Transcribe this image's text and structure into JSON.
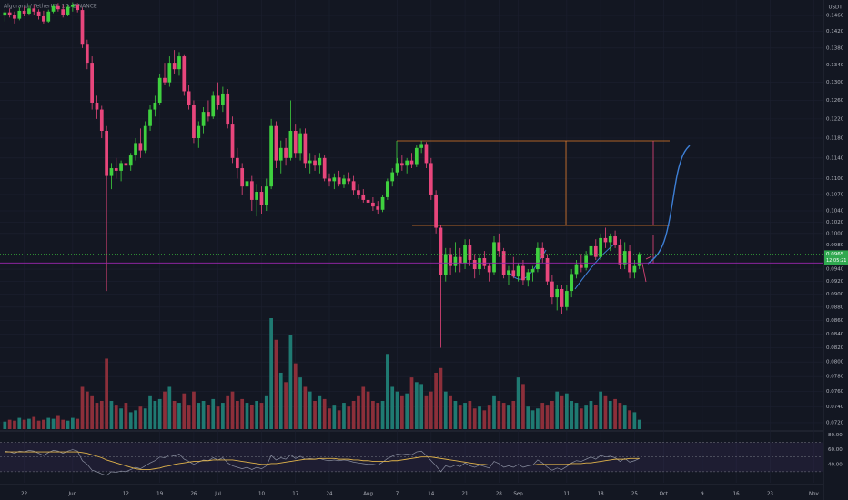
{
  "chart_data": {
    "type": "candlestick",
    "title": "Algorand / TetherUS, 1D, BINANCE",
    "currency": "USDT",
    "log_scale": true,
    "up_color": "#3fd13f",
    "down_color": "#e8467c",
    "volume_up_color": "#1f7a72",
    "volume_down_color": "#8c2f3a",
    "rsi_color": "#8a8fa0",
    "rsi_ma_color": "#e0b34a",
    "last_price": 0.0965,
    "countdown": "12:05:21",
    "horizontal_line": 0.095,
    "xlim": [
      -5,
      165
    ],
    "ylim": [
      0.0712,
      0.15
    ],
    "x": [
      -4,
      -3,
      -2,
      -1,
      0,
      1,
      2,
      3,
      4,
      5,
      6,
      7,
      8,
      9,
      10,
      11,
      12,
      13,
      14,
      15,
      16,
      17,
      18,
      19,
      20,
      21,
      22,
      23,
      24,
      25,
      26,
      27,
      28,
      29,
      30,
      31,
      32,
      33,
      34,
      35,
      36,
      37,
      38,
      39,
      40,
      41,
      42,
      43,
      44,
      45,
      46,
      47,
      48,
      49,
      50,
      51,
      52,
      53,
      54,
      55,
      56,
      57,
      58,
      59,
      60,
      61,
      62,
      63,
      64,
      65,
      66,
      67,
      68,
      69,
      70,
      71,
      72,
      73,
      74,
      75,
      76,
      77,
      78,
      79,
      80,
      81,
      82,
      83,
      84,
      85,
      86,
      87,
      88,
      89,
      90,
      91,
      92,
      93,
      94,
      95,
      96,
      97,
      98,
      99,
      100,
      101,
      102,
      103,
      104,
      105,
      106,
      107,
      108,
      109,
      110,
      111,
      112,
      113,
      114,
      115,
      116,
      117,
      118,
      119,
      120,
      121,
      122,
      123,
      124,
      125,
      126,
      127
    ],
    "ohlc": [
      [
        0.146,
        0.1475,
        0.1445,
        0.1468
      ],
      [
        0.1468,
        0.1478,
        0.1455,
        0.1462
      ],
      [
        0.1462,
        0.147,
        0.144,
        0.1452
      ],
      [
        0.1452,
        0.148,
        0.1448,
        0.1472
      ],
      [
        0.1472,
        0.1482,
        0.1458,
        0.1465
      ],
      [
        0.1465,
        0.1485,
        0.146,
        0.1478
      ],
      [
        0.1478,
        0.1488,
        0.1462,
        0.147
      ],
      [
        0.147,
        0.1476,
        0.145,
        0.1458
      ],
      [
        0.1458,
        0.1472,
        0.144,
        0.1445
      ],
      [
        0.1445,
        0.1475,
        0.1442,
        0.147
      ],
      [
        0.147,
        0.149,
        0.1466,
        0.1484
      ],
      [
        0.1484,
        0.1492,
        0.147,
        0.1476
      ],
      [
        0.1476,
        0.1486,
        0.1455,
        0.1462
      ],
      [
        0.1462,
        0.1488,
        0.1458,
        0.1482
      ],
      [
        0.1482,
        0.1494,
        0.147,
        0.1488
      ],
      [
        0.1488,
        0.1492,
        0.1468,
        0.1474
      ],
      [
        0.1474,
        0.148,
        0.138,
        0.139
      ],
      [
        0.139,
        0.14,
        0.133,
        0.1345
      ],
      [
        0.1345,
        0.136,
        0.124,
        0.1255
      ],
      [
        0.1255,
        0.127,
        0.122,
        0.124
      ],
      [
        0.124,
        0.1248,
        0.118,
        0.1195
      ],
      [
        0.1195,
        0.1205,
        0.0905,
        0.1105
      ],
      [
        0.1105,
        0.113,
        0.108,
        0.112
      ],
      [
        0.112,
        0.114,
        0.11,
        0.1115
      ],
      [
        0.1115,
        0.1135,
        0.1095,
        0.113
      ],
      [
        0.113,
        0.1145,
        0.111,
        0.1125
      ],
      [
        0.1125,
        0.115,
        0.1115,
        0.1145
      ],
      [
        0.1145,
        0.118,
        0.1135,
        0.117
      ],
      [
        0.117,
        0.12,
        0.114,
        0.1155
      ],
      [
        0.1155,
        0.1215,
        0.115,
        0.1205
      ],
      [
        0.1205,
        0.125,
        0.1195,
        0.124
      ],
      [
        0.124,
        0.127,
        0.1225,
        0.1255
      ],
      [
        0.1255,
        0.132,
        0.125,
        0.131
      ],
      [
        0.131,
        0.1345,
        0.1295,
        0.13
      ],
      [
        0.13,
        0.136,
        0.129,
        0.1345
      ],
      [
        0.1345,
        0.1375,
        0.132,
        0.133
      ],
      [
        0.133,
        0.137,
        0.1315,
        0.136
      ],
      [
        0.136,
        0.1365,
        0.127,
        0.128
      ],
      [
        0.128,
        0.1295,
        0.124,
        0.125
      ],
      [
        0.125,
        0.126,
        0.117,
        0.118
      ],
      [
        0.118,
        0.1215,
        0.116,
        0.1205
      ],
      [
        0.1205,
        0.1245,
        0.119,
        0.1235
      ],
      [
        0.1235,
        0.126,
        0.1215,
        0.1225
      ],
      [
        0.1225,
        0.128,
        0.122,
        0.127
      ],
      [
        0.127,
        0.13,
        0.124,
        0.125
      ],
      [
        0.125,
        0.129,
        0.1235,
        0.1275
      ],
      [
        0.1275,
        0.1285,
        0.12,
        0.121
      ],
      [
        0.121,
        0.1225,
        0.113,
        0.114
      ],
      [
        0.114,
        0.116,
        0.11,
        0.112
      ],
      [
        0.112,
        0.113,
        0.107,
        0.1085
      ],
      [
        0.1085,
        0.111,
        0.106,
        0.1095
      ],
      [
        0.1095,
        0.1105,
        0.104,
        0.106
      ],
      [
        0.106,
        0.109,
        0.103,
        0.1075
      ],
      [
        0.1075,
        0.1085,
        0.1035,
        0.105
      ],
      [
        0.105,
        0.11,
        0.104,
        0.1085
      ],
      [
        0.1085,
        0.122,
        0.108,
        0.1205
      ],
      [
        0.1205,
        0.1215,
        0.112,
        0.1135
      ],
      [
        0.1135,
        0.1175,
        0.111,
        0.116
      ],
      [
        0.116,
        0.118,
        0.1125,
        0.114
      ],
      [
        0.114,
        0.126,
        0.1135,
        0.1195
      ],
      [
        0.1195,
        0.121,
        0.114,
        0.115
      ],
      [
        0.115,
        0.12,
        0.1135,
        0.119
      ],
      [
        0.119,
        0.12,
        0.112,
        0.113
      ],
      [
        0.113,
        0.115,
        0.111,
        0.1135
      ],
      [
        0.1135,
        0.1145,
        0.1115,
        0.1125
      ],
      [
        0.1125,
        0.115,
        0.111,
        0.114
      ],
      [
        0.114,
        0.1145,
        0.1095,
        0.11
      ],
      [
        0.11,
        0.111,
        0.1085,
        0.1095
      ],
      [
        0.1095,
        0.111,
        0.108,
        0.1102
      ],
      [
        0.1102,
        0.1115,
        0.1085,
        0.109
      ],
      [
        0.109,
        0.1108,
        0.1082,
        0.11
      ],
      [
        0.11,
        0.1112,
        0.109,
        0.1095
      ],
      [
        0.1095,
        0.1105,
        0.107,
        0.1078
      ],
      [
        0.1078,
        0.109,
        0.1062,
        0.107
      ],
      [
        0.107,
        0.108,
        0.1055,
        0.106
      ],
      [
        0.106,
        0.1068,
        0.1045,
        0.1055
      ],
      [
        0.1055,
        0.1065,
        0.104,
        0.1048
      ],
      [
        0.1048,
        0.1058,
        0.1035,
        0.1042
      ],
      [
        0.1042,
        0.107,
        0.1038,
        0.1065
      ],
      [
        0.1065,
        0.11,
        0.106,
        0.1095
      ],
      [
        0.1095,
        0.112,
        0.1085,
        0.1112
      ],
      [
        0.1112,
        0.114,
        0.1105,
        0.113
      ],
      [
        0.113,
        0.1145,
        0.1115,
        0.1125
      ],
      [
        0.1125,
        0.114,
        0.111,
        0.1135
      ],
      [
        0.1135,
        0.115,
        0.112,
        0.1128
      ],
      [
        0.1128,
        0.1165,
        0.1122,
        0.116
      ],
      [
        0.116,
        0.1175,
        0.115,
        0.1168
      ],
      [
        0.1168,
        0.1172,
        0.112,
        0.113
      ],
      [
        0.113,
        0.114,
        0.106,
        0.107
      ],
      [
        0.107,
        0.1078,
        0.1,
        0.101
      ],
      [
        0.101,
        0.1015,
        0.082,
        0.093
      ],
      [
        0.093,
        0.0975,
        0.092,
        0.0965
      ],
      [
        0.0965,
        0.0975,
        0.093,
        0.0945
      ],
      [
        0.0945,
        0.0985,
        0.0935,
        0.096
      ],
      [
        0.096,
        0.0975,
        0.0935,
        0.095
      ],
      [
        0.095,
        0.099,
        0.094,
        0.098
      ],
      [
        0.098,
        0.099,
        0.0945,
        0.0955
      ],
      [
        0.0955,
        0.0965,
        0.0925,
        0.094
      ],
      [
        0.094,
        0.0965,
        0.093,
        0.0958
      ],
      [
        0.0958,
        0.097,
        0.094,
        0.0945
      ],
      [
        0.0945,
        0.095,
        0.092,
        0.0935
      ],
      [
        0.0935,
        0.0995,
        0.093,
        0.0985
      ],
      [
        0.0985,
        0.1,
        0.096,
        0.097
      ],
      [
        0.097,
        0.0975,
        0.0925,
        0.093
      ],
      [
        0.093,
        0.0945,
        0.0915,
        0.0938
      ],
      [
        0.0938,
        0.096,
        0.0925,
        0.0928
      ],
      [
        0.0928,
        0.095,
        0.092,
        0.0945
      ],
      [
        0.0945,
        0.0955,
        0.0915,
        0.0922
      ],
      [
        0.0922,
        0.094,
        0.0912,
        0.0935
      ],
      [
        0.0935,
        0.0945,
        0.092,
        0.094
      ],
      [
        0.094,
        0.0985,
        0.0935,
        0.0975
      ],
      [
        0.0975,
        0.0985,
        0.095,
        0.0958
      ],
      [
        0.0958,
        0.0965,
        0.0915,
        0.092
      ],
      [
        0.092,
        0.093,
        0.0885,
        0.0895
      ],
      [
        0.0895,
        0.0915,
        0.0875,
        0.0908
      ],
      [
        0.0908,
        0.0915,
        0.087,
        0.088
      ],
      [
        0.088,
        0.0915,
        0.0875,
        0.0905
      ],
      [
        0.0905,
        0.094,
        0.0895,
        0.0932
      ],
      [
        0.0932,
        0.0955,
        0.0925,
        0.0948
      ],
      [
        0.0948,
        0.0965,
        0.0935,
        0.0942
      ],
      [
        0.0942,
        0.097,
        0.0938,
        0.0962
      ],
      [
        0.0962,
        0.0985,
        0.0955,
        0.0978
      ],
      [
        0.0978,
        0.099,
        0.0955,
        0.096
      ],
      [
        0.096,
        0.1,
        0.0955,
        0.0992
      ],
      [
        0.0992,
        0.101,
        0.0975,
        0.0985
      ],
      [
        0.0985,
        0.1,
        0.097,
        0.0995
      ],
      [
        0.0995,
        0.1005,
        0.0975,
        0.098
      ],
      [
        0.098,
        0.099,
        0.094,
        0.0948
      ],
      [
        0.0948,
        0.0985,
        0.094,
        0.097
      ],
      [
        0.097,
        0.098,
        0.0925,
        0.0935
      ],
      [
        0.0935,
        0.0955,
        0.0925,
        0.0945
      ],
      [
        0.0945,
        0.0968,
        0.094,
        0.0965
      ]
    ],
    "volume": [
      8,
      10,
      9,
      12,
      10,
      11,
      13,
      9,
      10,
      12,
      11,
      14,
      10,
      9,
      12,
      11,
      45,
      40,
      35,
      28,
      30,
      75,
      30,
      25,
      22,
      28,
      18,
      20,
      24,
      22,
      35,
      30,
      32,
      40,
      45,
      30,
      28,
      38,
      25,
      40,
      28,
      30,
      26,
      32,
      24,
      28,
      35,
      40,
      30,
      32,
      28,
      26,
      30,
      28,
      35,
      118,
      95,
      60,
      50,
      100,
      70,
      55,
      45,
      40,
      30,
      35,
      32,
      22,
      25,
      20,
      28,
      24,
      30,
      35,
      45,
      40,
      30,
      28,
      30,
      80,
      45,
      40,
      35,
      38,
      55,
      50,
      48,
      35,
      40,
      60,
      65,
      40,
      35,
      30,
      25,
      28,
      30,
      22,
      24,
      20,
      25,
      35,
      30,
      28,
      25,
      30,
      55,
      48,
      24,
      20,
      22,
      28,
      25,
      30,
      40,
      35,
      38,
      30,
      28,
      22,
      25,
      30,
      26,
      40,
      35,
      30,
      32,
      28,
      25,
      20,
      18,
      10
    ],
    "rsi": [
      58,
      57,
      55,
      58,
      57,
      59,
      58,
      55,
      52,
      56,
      59,
      58,
      55,
      58,
      60,
      58,
      45,
      40,
      32,
      30,
      27,
      25,
      30,
      29,
      31,
      30,
      33,
      36,
      34,
      38,
      42,
      45,
      50,
      49,
      53,
      51,
      54,
      47,
      44,
      40,
      43,
      46,
      45,
      49,
      46,
      49,
      42,
      38,
      36,
      34,
      36,
      33,
      36,
      34,
      38,
      52,
      46,
      49,
      47,
      53,
      48,
      51,
      47,
      48,
      47,
      48,
      46,
      45,
      46,
      45,
      46,
      45,
      43,
      42,
      41,
      40,
      40,
      39,
      43,
      48,
      51,
      54,
      53,
      54,
      53,
      57,
      58,
      52,
      45,
      38,
      30,
      38,
      36,
      39,
      37,
      42,
      38,
      36,
      39,
      37,
      35,
      44,
      41,
      36,
      38,
      36,
      40,
      36,
      38,
      39,
      46,
      42,
      36,
      32,
      35,
      33,
      37,
      42,
      45,
      44,
      47,
      50,
      47,
      52,
      50,
      51,
      49,
      44,
      48,
      43,
      45,
      48
    ],
    "rsi_ma": [
      57,
      57,
      57,
      57,
      57,
      57,
      57,
      57,
      57,
      57,
      57,
      57,
      57,
      57,
      57,
      57,
      56,
      55,
      53,
      51,
      49,
      46,
      44,
      42,
      40,
      38,
      36,
      34,
      33,
      33,
      33,
      34,
      35,
      37,
      38,
      40,
      41,
      42,
      43,
      44,
      44,
      45,
      45,
      46,
      46,
      46,
      46,
      46,
      45,
      44,
      43,
      42,
      41,
      40,
      40,
      41,
      41,
      42,
      43,
      44,
      45,
      46,
      47,
      47,
      47,
      48,
      48,
      48,
      48,
      47,
      47,
      47,
      46,
      46,
      45,
      45,
      44,
      44,
      44,
      44,
      45,
      45,
      46,
      47,
      48,
      49,
      50,
      50,
      50,
      49,
      48,
      47,
      46,
      45,
      44,
      43,
      42,
      41,
      40,
      40,
      39,
      39,
      39,
      39,
      39,
      39,
      39,
      39,
      39,
      39,
      40,
      40,
      40,
      40,
      40,
      40,
      40,
      41,
      41,
      41,
      42,
      42,
      43,
      44,
      45,
      46,
      47,
      47,
      47,
      48,
      48,
      48
    ],
    "rsi_ylim": [
      15,
      83
    ],
    "rsi_levels": [
      70,
      50,
      30
    ],
    "rsi_yticks": [
      {
        "value": 80,
        "label": "80.00"
      },
      {
        "value": 60,
        "label": "60.00"
      },
      {
        "value": 40,
        "label": "40.00"
      }
    ],
    "yticks": [
      {
        "value": 0.146,
        "label": "0.1460"
      },
      {
        "value": 0.142,
        "label": "0.1420"
      },
      {
        "value": 0.138,
        "label": "0.1380"
      },
      {
        "value": 0.134,
        "label": "0.1340"
      },
      {
        "value": 0.13,
        "label": "0.1300"
      },
      {
        "value": 0.126,
        "label": "0.1260"
      },
      {
        "value": 0.122,
        "label": "0.1220"
      },
      {
        "value": 0.118,
        "label": "0.1180"
      },
      {
        "value": 0.114,
        "label": "0.1140"
      },
      {
        "value": 0.11,
        "label": "0.1100"
      },
      {
        "value": 0.107,
        "label": "0.1070"
      },
      {
        "value": 0.104,
        "label": "0.1040"
      },
      {
        "value": 0.102,
        "label": "0.1020"
      },
      {
        "value": 0.1,
        "label": "0.1000"
      },
      {
        "value": 0.098,
        "label": "0.0980"
      },
      {
        "value": 0.094,
        "label": "0.0940"
      },
      {
        "value": 0.092,
        "label": "0.0920"
      },
      {
        "value": 0.09,
        "label": "0.0900"
      },
      {
        "value": 0.088,
        "label": "0.0880"
      },
      {
        "value": 0.086,
        "label": "0.0860"
      },
      {
        "value": 0.084,
        "label": "0.0840"
      },
      {
        "value": 0.082,
        "label": "0.0820"
      },
      {
        "value": 0.08,
        "label": "0.0800"
      },
      {
        "value": 0.078,
        "label": "0.0780"
      },
      {
        "value": 0.076,
        "label": "0.0760"
      },
      {
        "value": 0.074,
        "label": "0.0740"
      },
      {
        "value": 0.072,
        "label": "0.0720"
      }
    ],
    "xticks": [
      {
        "value": 0,
        "label": "22"
      },
      {
        "value": 10,
        "label": "Jun"
      },
      {
        "value": 21,
        "label": "12"
      },
      {
        "value": 28,
        "label": "19"
      },
      {
        "value": 35,
        "label": "26"
      },
      {
        "value": 40,
        "label": "Jul"
      },
      {
        "value": 49,
        "label": "10"
      },
      {
        "value": 56,
        "label": "17"
      },
      {
        "value": 63,
        "label": "24"
      },
      {
        "value": 71,
        "label": "Aug"
      },
      {
        "value": 77,
        "label": "7"
      },
      {
        "value": 84,
        "label": "14"
      },
      {
        "value": 91,
        "label": "21"
      },
      {
        "value": 98,
        "label": "28"
      },
      {
        "value": 102,
        "label": "Sep"
      },
      {
        "value": 112,
        "label": "11"
      },
      {
        "value": 119,
        "label": "18"
      },
      {
        "value": 126,
        "label": "25"
      },
      {
        "value": 132,
        "label": "Oct"
      },
      {
        "value": 140,
        "label": "9"
      },
      {
        "value": 147,
        "label": "16"
      },
      {
        "value": 154,
        "label": "23"
      },
      {
        "value": 163,
        "label": "Nov"
      }
    ]
  }
}
